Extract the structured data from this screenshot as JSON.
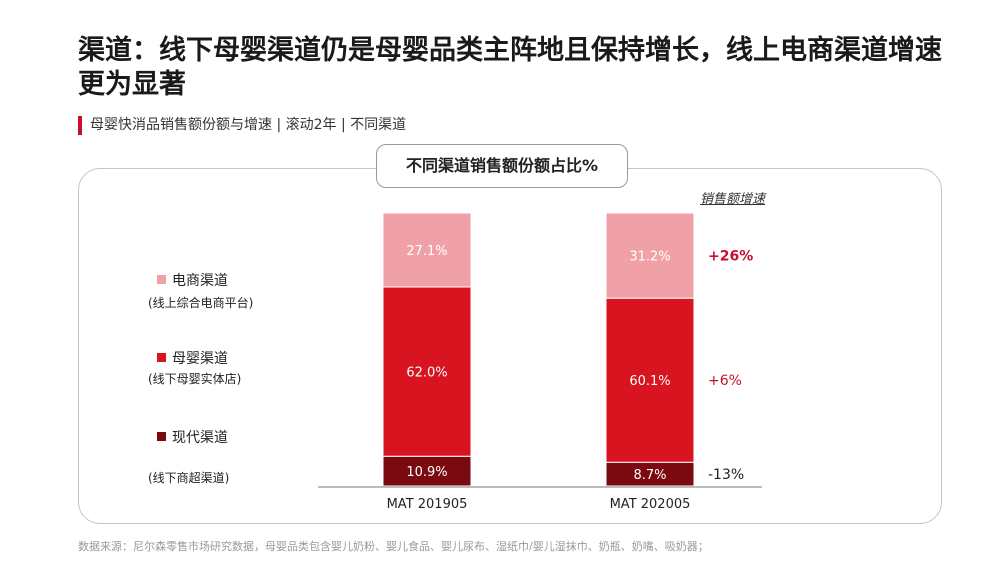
{
  "header": {
    "title": "渠道：线下母婴渠道仍是母婴品类主阵地且保持增长，线上电商渠道增速更为显著",
    "subtitle": "母婴快消品销售额份额与增速 | 滚动2年 | 不同渠道"
  },
  "panel": {
    "title": "不同渠道销售额份额占比%",
    "growth_header": "销售额增速"
  },
  "legend": [
    {
      "label": "电商渠道",
      "sub": "(线上综合电商平台)",
      "color": "#f0a1a8"
    },
    {
      "label": "母婴渠道",
      "sub": "(线下母婴实体店)",
      "color": "#d7141f"
    },
    {
      "label": "现代渠道",
      "sub": "(线下商超渠道)",
      "color": "#7a0a10"
    }
  ],
  "chart_data": {
    "type": "bar",
    "stacked": true,
    "categories": [
      "MAT 201905",
      "MAT 202005"
    ],
    "series": [
      {
        "name": "现代渠道",
        "values": [
          10.9,
          8.7
        ],
        "labels": [
          "10.9%",
          "8.7%"
        ],
        "color": "#7a0a10",
        "growth": "-13%",
        "growth_color": "#222222",
        "growth_bold": false
      },
      {
        "name": "母婴渠道",
        "values": [
          62.0,
          60.1
        ],
        "labels": [
          "62.0%",
          "60.1%"
        ],
        "color": "#d7141f",
        "growth": "+6%",
        "growth_color": "#c8102e",
        "growth_bold": false
      },
      {
        "name": "电商渠道",
        "values": [
          27.1,
          31.2
        ],
        "labels": [
          "27.1%",
          "31.2%"
        ],
        "color": "#f0a1a8",
        "growth": "+26%",
        "growth_color": "#c8102e",
        "growth_bold": true
      }
    ],
    "unit": "%"
  },
  "source": "数据来源：尼尔森零售市场研究数据，母婴品类包含婴儿奶粉、婴儿食品、婴儿尿布、湿纸巾/婴儿湿抹巾、奶瓶、奶嘴、吸奶器；"
}
